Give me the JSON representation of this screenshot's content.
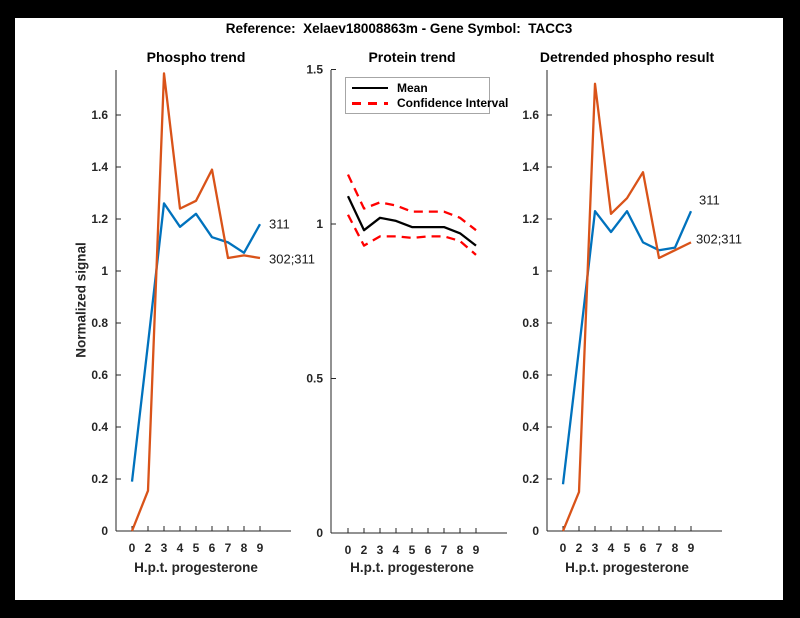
{
  "figure": {
    "title": "Reference:  Xelaev18008863m - Gene Symbol:  TACC3",
    "frame_color": "#000000",
    "canvas_color": "#ffffff",
    "axis_color": "#262626"
  },
  "chart_data": [
    {
      "type": "line",
      "title": "Phospho trend",
      "xlabel": "H.p.t. progesterone",
      "ylabel": "Normalized signal",
      "x_ticklabels": [
        "0",
        "2",
        "3",
        "4",
        "5",
        "6",
        "7",
        "8",
        "9"
      ],
      "y_tick_values": [
        0,
        0.2,
        0.4,
        0.6,
        0.8,
        1,
        1.2,
        1.4,
        1.6
      ],
      "y_ticklabels": [
        "0",
        "0.2",
        "0.4",
        "0.6",
        "0.8",
        "1",
        "1.2",
        "1.4",
        "1.6"
      ],
      "ylim": [
        0,
        1.78
      ],
      "grid": false,
      "series": [
        {
          "name": "311",
          "color": "#0072BD",
          "dash": false,
          "values": [
            0.19,
            0.72,
            1.26,
            1.17,
            1.22,
            1.13,
            1.11,
            1.07,
            1.18
          ]
        },
        {
          "name": "302;311",
          "color": "#D95319",
          "dash": false,
          "values": [
            0,
            0.155,
            1.76,
            1.24,
            1.27,
            1.39,
            1.05,
            1.06,
            1.05
          ]
        }
      ],
      "end_labels": [
        {
          "text": "311"
        },
        {
          "text": "302;311"
        }
      ]
    },
    {
      "type": "line",
      "title": "Protein trend",
      "xlabel": "H.p.t. progesterone",
      "ylabel": "",
      "x_ticklabels": [
        "0",
        "2",
        "3",
        "4",
        "5",
        "6",
        "7",
        "8",
        "9"
      ],
      "y_tick_values": [
        0,
        0.5,
        1,
        1.5
      ],
      "y_ticklabels": [
        "0",
        "0.5",
        "1",
        "1.5"
      ],
      "ylim": [
        0,
        1.5
      ],
      "grid": false,
      "series": [
        {
          "name": "Mean",
          "color": "#000000",
          "dash": false,
          "values": [
            1.09,
            0.98,
            1.02,
            1.01,
            0.99,
            0.99,
            0.99,
            0.97,
            0.93
          ]
        },
        {
          "name": "Confidence Interval upper",
          "color": "#FF0000",
          "dash": true,
          "values": [
            1.16,
            1.05,
            1.07,
            1.06,
            1.04,
            1.04,
            1.04,
            1.02,
            0.98
          ]
        },
        {
          "name": "Confidence Interval lower",
          "color": "#FF0000",
          "dash": true,
          "values": [
            1.03,
            0.93,
            0.96,
            0.96,
            0.955,
            0.96,
            0.96,
            0.945,
            0.9
          ]
        }
      ],
      "legend": {
        "position": "top-left-inside",
        "entries": [
          {
            "label": "Mean",
            "color": "#000000",
            "dash": false
          },
          {
            "label": "Confidence Interval",
            "color": "#FF0000",
            "dash": true
          }
        ]
      }
    },
    {
      "type": "line",
      "title": "Detrended phospho result",
      "xlabel": "H.p.t. progesterone",
      "ylabel": "",
      "x_ticklabels": [
        "0",
        "2",
        "3",
        "4",
        "5",
        "6",
        "7",
        "8",
        "9"
      ],
      "y_tick_values": [
        0,
        0.2,
        0.4,
        0.6,
        0.8,
        1,
        1.2,
        1.4,
        1.6
      ],
      "y_ticklabels": [
        "0",
        "0.2",
        "0.4",
        "0.6",
        "0.8",
        "1",
        "1.2",
        "1.4",
        "1.6"
      ],
      "ylim": [
        0,
        1.78
      ],
      "grid": false,
      "series": [
        {
          "name": "311",
          "color": "#0072BD",
          "dash": false,
          "values": [
            0.18,
            0.7,
            1.23,
            1.15,
            1.23,
            1.11,
            1.08,
            1.09,
            1.23
          ]
        },
        {
          "name": "302;311",
          "color": "#D95319",
          "dash": false,
          "values": [
            0,
            0.15,
            1.72,
            1.22,
            1.28,
            1.38,
            1.05,
            1.08,
            1.11
          ]
        }
      ],
      "end_labels": [
        {
          "text": "311"
        },
        {
          "text": "302;311"
        }
      ]
    }
  ]
}
